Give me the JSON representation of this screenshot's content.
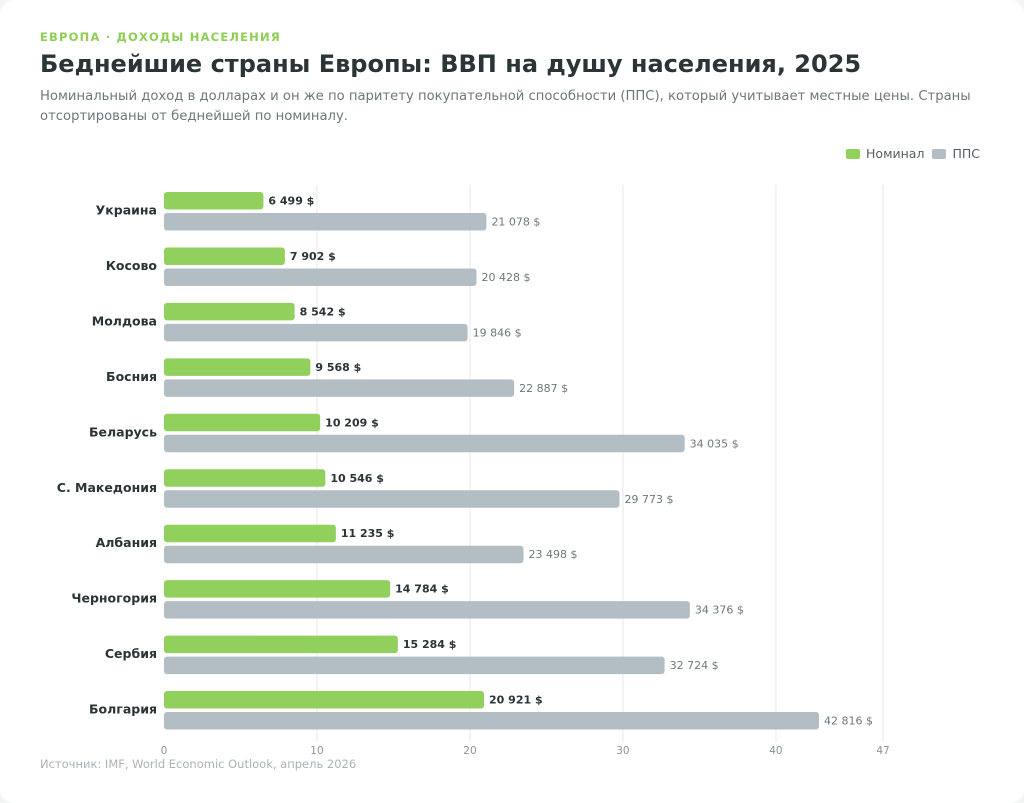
{
  "header": {
    "kicker": "ЕВРОПА · ДОХОДЫ НАСЕЛЕНИЯ",
    "title": "Беднейшие страны Европы: ВВП на душу населения, 2025",
    "subtitle": "Номинальный доход в долларах и он же по паритету покупательной способности (ППС), который учитывает местные цены. Страны отсортированы от беднейшей по номиналу."
  },
  "legend": [
    {
      "label": "Номинал",
      "color": "#92d05e"
    },
    {
      "label": "ППС",
      "color": "#b3bec4"
    }
  ],
  "footer": {
    "source": "Источник: IMF, World Economic Outlook, апрель 2026"
  },
  "chart_data": {
    "type": "bar",
    "orientation": "horizontal",
    "categories": [
      "Украина",
      "Косово",
      "Молдова",
      "Босния",
      "Беларусь",
      "С. Македония",
      "Албания",
      "Черногория",
      "Сербия",
      "Болгария"
    ],
    "series": [
      {
        "name": "Номинал",
        "color": "#92d05e",
        "values": [
          6499,
          7902,
          8542,
          9568,
          10209,
          10546,
          11235,
          14784,
          15284,
          20921
        ],
        "labels": [
          "6 499 $",
          "7 902 $",
          "8 542 $",
          "9 568 $",
          "10 209 $",
          "10 546 $",
          "11 235 $",
          "14 784 $",
          "15 284 $",
          "20 921 $"
        ]
      },
      {
        "name": "ППС",
        "color": "#b3bec4",
        "values": [
          21078,
          20428,
          19846,
          22887,
          34035,
          29773,
          23498,
          34376,
          32724,
          42816
        ],
        "labels": [
          "21 078 $",
          "20 428 $",
          "19 846 $",
          "22 887 $",
          "34 035 $",
          "29 773 $",
          "23 498 $",
          "34 376 $",
          "32 724 $",
          "42 816 $"
        ]
      }
    ],
    "xticks": [
      "0",
      "10",
      "20",
      "30",
      "40",
      "47"
    ],
    "xlim": [
      0,
      47000
    ],
    "grid": true,
    "legend_position": "top-right"
  }
}
